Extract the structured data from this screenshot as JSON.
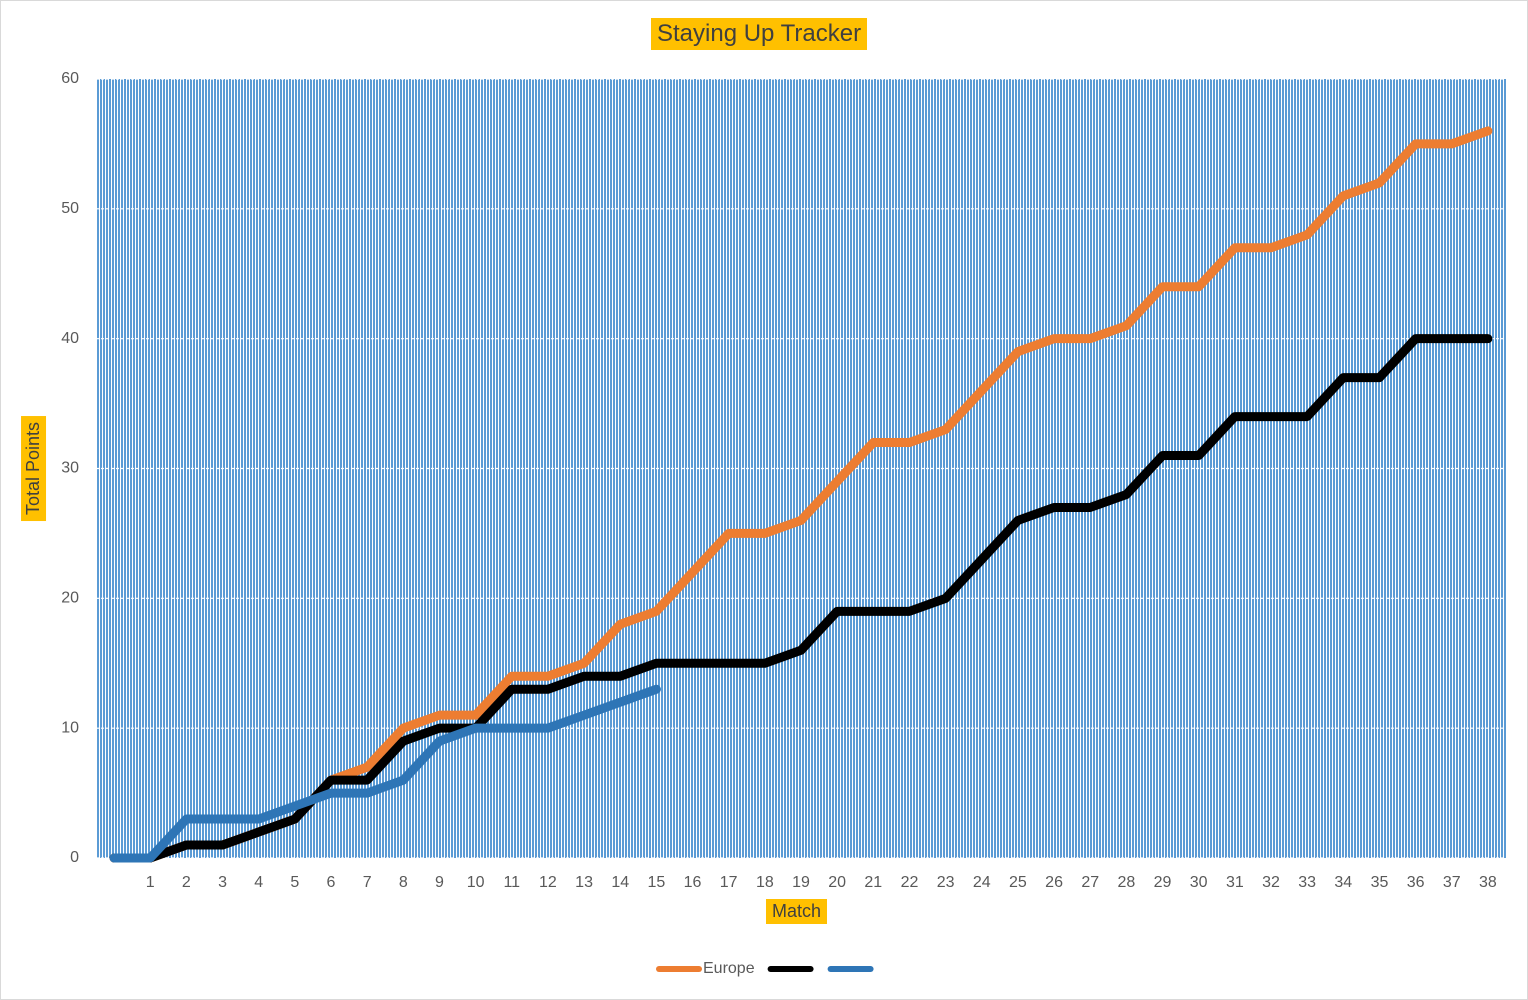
{
  "chart_data": {
    "type": "line",
    "title": "Staying Up Tracker",
    "x_label": "Match",
    "y_label": "Total Points",
    "categories": [
      null,
      "1",
      "2",
      "3",
      "4",
      "5",
      "6",
      "7",
      "8",
      "9",
      "10",
      "11",
      "12",
      "13",
      "14",
      "15",
      "16",
      "17",
      "18",
      "19",
      "20",
      "21",
      "22",
      "23",
      "24",
      "25",
      "26",
      "27",
      "28",
      "29",
      "30",
      "31",
      "32",
      "33",
      "34",
      "35",
      "36",
      "37",
      "38"
    ],
    "series": [
      {
        "name": "Europe",
        "color": "#ed7d31",
        "values": [
          0,
          0,
          1,
          1,
          2,
          3,
          6,
          7,
          10,
          11,
          11,
          14,
          14,
          15,
          18,
          19,
          22,
          25,
          25,
          26,
          29,
          32,
          32,
          33,
          36,
          39,
          40,
          40,
          41,
          44,
          44,
          47,
          47,
          48,
          51,
          52,
          55,
          55,
          56
        ]
      },
      {
        "color": "#000000",
        "values": [
          0,
          0,
          1,
          1,
          2,
          3,
          6,
          6,
          9,
          10,
          10,
          13,
          13,
          14,
          14,
          15,
          15,
          15,
          15,
          16,
          19,
          19,
          19,
          20,
          23,
          26,
          27,
          27,
          28,
          31,
          31,
          34,
          34,
          34,
          37,
          37,
          40,
          40,
          40
        ]
      },
      {
        "color": "#2e75b6",
        "values": [
          0,
          0,
          3,
          3,
          3,
          4,
          5,
          5,
          6,
          9,
          10,
          10,
          10,
          11,
          12,
          13,
          null,
          null,
          null,
          null,
          null,
          null,
          null,
          null,
          null,
          null,
          null,
          null,
          null,
          null,
          null,
          null,
          null,
          null,
          null,
          null,
          null,
          null,
          null
        ]
      }
    ],
    "ylim": [
      0,
      60
    ],
    "yticks": [
      0,
      10,
      20,
      30,
      40,
      50,
      60
    ],
    "grid": true,
    "legend": "bottom",
    "plot_color": "#5b9bd5",
    "label_background": "#ffc000"
  }
}
